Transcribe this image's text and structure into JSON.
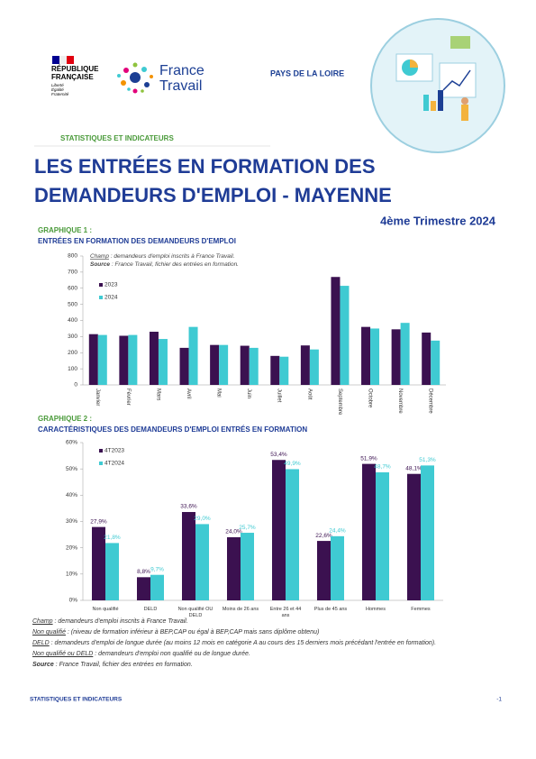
{
  "header": {
    "republic": [
      "RÉPUBLIQUE",
      "FRANÇAISE"
    ],
    "motto": [
      "Liberté",
      "Égalité",
      "Fraternité"
    ],
    "brand": [
      "France",
      "Travail"
    ],
    "region": "PAYS DE LA LOIRE"
  },
  "section": "STATISTIQUES ET INDICATEURS",
  "title": [
    "LES ENTRÉES EN FORMATION DES",
    "DEMANDEURS D'EMPLOI - MAYENNE"
  ],
  "period": "4ème Trimestre 2024",
  "chart_data": [
    {
      "type": "bar",
      "label": "GRAPHIQUE 1 :",
      "title": "ENTRÉES EN FORMATION DES DEMANDEURS D'EMPLOI",
      "annotations": [
        {
          "label": "Champ",
          "text": " : demandeurs d'emploi inscrits à France Travail."
        },
        {
          "label": "Source",
          "text": " : France Travail, fichier des entrées en formation."
        }
      ],
      "categories": [
        "Janvier",
        "Février",
        "Mars",
        "Avril",
        "Mai",
        "Juin",
        "Juillet",
        "Août",
        "Septembre",
        "Octobre",
        "Novembre",
        "Décembre"
      ],
      "series": [
        {
          "name": "2023",
          "color": "#3b1150",
          "values": [
            315,
            305,
            330,
            230,
            248,
            243,
            180,
            245,
            670,
            360,
            345,
            325
          ]
        },
        {
          "name": "2024",
          "color": "#3fcad2",
          "values": [
            310,
            310,
            285,
            360,
            248,
            230,
            175,
            220,
            615,
            350,
            385,
            275
          ]
        }
      ],
      "ylim": [
        0,
        800
      ],
      "yticks": [
        0,
        100,
        200,
        300,
        400,
        500,
        600,
        700,
        800
      ],
      "grid": false,
      "legend": "top-left"
    },
    {
      "type": "bar",
      "label": "GRAPHIQUE 2 :",
      "title": "CARACTÉRISTIQUES DES DEMANDEURS D'EMPLOI ENTRÉS EN FORMATION",
      "categories": [
        "Non qualifié",
        "DELD",
        "Non qualifié OU DELD",
        "Moins de 26 ans",
        "Entre 26 et 44 ans",
        "Plus de 45 ans",
        "Hommes",
        "Femmes"
      ],
      "series": [
        {
          "name": "4T2023",
          "color": "#3b1150",
          "values": [
            27.9,
            8.8,
            33.6,
            24.0,
            53.4,
            22.6,
            51.9,
            48.1
          ],
          "value_labels": [
            "27,9%",
            "8,8%",
            "33,6%",
            "24,0%",
            "53,4%",
            "22,6%",
            "51,9%",
            "48,1%"
          ]
        },
        {
          "name": "4T2024",
          "color": "#3fcad2",
          "values": [
            21.8,
            9.7,
            29.0,
            25.7,
            49.9,
            24.4,
            48.7,
            51.3
          ],
          "value_labels": [
            "21,8%",
            "9,7%",
            "29,0%",
            "25,7%",
            "49,9%",
            "24,4%",
            "48,7%",
            "51,3%"
          ]
        }
      ],
      "ylim": [
        0,
        60
      ],
      "yticks": [
        {
          "value": 0,
          "label": "0%"
        },
        {
          "value": 10,
          "label": "10%"
        },
        {
          "value": 20,
          "label": "20%"
        },
        {
          "value": 30,
          "label": "30%"
        },
        {
          "value": 40,
          "label": "40%"
        },
        {
          "value": 50,
          "label": "50%"
        },
        {
          "value": 60,
          "label": "60%"
        }
      ],
      "grid": false,
      "legend": "top-left"
    }
  ],
  "notes": [
    {
      "label": "Champ",
      "text": " : demandeurs d'emploi inscrits à France Travail."
    },
    {
      "label": "Non qualifié",
      "text": " : (niveau de formation inférieur à BEP,CAP ou égal à BEP,CAP mais sans diplôme obtenu)"
    },
    {
      "label": "DELD",
      "text": " : demandeurs d'emploi de longue durée (au moins 12 mois en catégorie A au cours des 15 derniers mois précédant l'entrée en formation)."
    },
    {
      "label": "Non qualifié ou DELD",
      "text": " : demandeurs d'emploi non qualifié ou de longue durée."
    },
    {
      "label": "Source",
      "text": " : France Travail, fichier des entrées en formation."
    }
  ],
  "footer": {
    "left": "STATISTIQUES ET INDICATEURS",
    "page": "-1"
  }
}
